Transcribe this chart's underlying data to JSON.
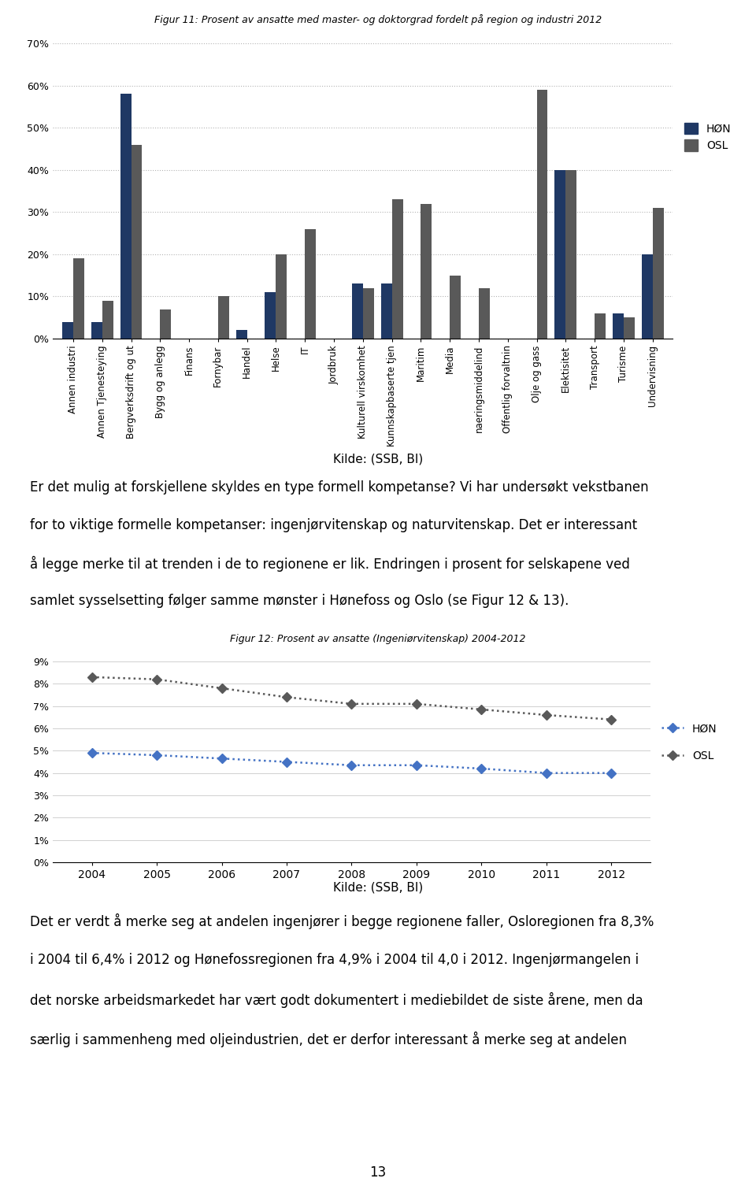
{
  "fig11_title": "Figur 11: Prosent av ansatte med master- og doktorgrad fordelt på region og industri 2012",
  "fig12_title": "Figur 12: Prosent av ansatte (Ingeniørvitenskap) 2004-2012",
  "kilde": "Kilde: (SSB, BI)",
  "categories": [
    "Annen industri",
    "Annen Tjenesteying",
    "Bergverksdrift og ut",
    "Bygg og anlegg",
    "Finans",
    "Fornybar",
    "Handel",
    "Helse",
    "IT",
    "Jordbruk",
    "Kulturell virskomhet",
    "Kunnskapbaserte tjen",
    "Maritim",
    "Media",
    "naeringsmiddelind",
    "Offentlig forvaltnin",
    "Olje og gass",
    "Elektisitet",
    "Transport",
    "Turisme",
    "Undervisning"
  ],
  "HON_values": [
    4,
    4,
    58,
    0,
    0,
    0,
    2,
    11,
    0,
    0,
    13,
    13,
    0,
    0,
    0,
    0,
    0,
    40,
    0,
    6,
    20
  ],
  "OSL_values": [
    19,
    9,
    46,
    7,
    0,
    10,
    0,
    20,
    26,
    0,
    12,
    33,
    32,
    15,
    12,
    0,
    59,
    40,
    6,
    5,
    31
  ],
  "bar_color_HON": "#1f3864",
  "bar_color_OSL": "#595959",
  "legend_HON": "HØN",
  "legend_OSL": "OSL",
  "fig11_ylim": [
    0,
    70
  ],
  "fig11_yticks": [
    0,
    10,
    20,
    30,
    40,
    50,
    60,
    70
  ],
  "fig11_ytick_labels": [
    "0%",
    "10%",
    "20%",
    "30%",
    "40%",
    "50%",
    "60%",
    "70%"
  ],
  "years": [
    2004,
    2005,
    2006,
    2007,
    2008,
    2009,
    2010,
    2011,
    2012
  ],
  "HON_line": [
    4.9,
    4.8,
    4.65,
    4.5,
    4.35,
    4.35,
    4.2,
    4.0,
    4.0
  ],
  "OSL_line": [
    8.3,
    8.2,
    7.8,
    7.4,
    7.1,
    7.1,
    6.85,
    6.6,
    6.4
  ],
  "fig12_ylim": [
    0,
    9
  ],
  "fig12_yticks": [
    0,
    1,
    2,
    3,
    4,
    5,
    6,
    7,
    8,
    9
  ],
  "fig12_ytick_labels": [
    "0%",
    "1%",
    "2%",
    "3%",
    "4%",
    "5%",
    "6%",
    "7%",
    "8%",
    "9%"
  ],
  "line_color_HON": "#4472c4",
  "line_color_OSL": "#595959",
  "text_block1_lines": [
    "Er det mulig at forskjellene skyldes en type formell kompetanse? Vi har undersøkt vekstbanen",
    "for to viktige formelle kompetanser: ingenjørvitenskap og naturvitenskap. Det er interessant",
    "å legge merke til at trenden i de to regionene er lik. Endringen i prosent for selskapene ved",
    "samlet sysselsetting følger samme mønster i Hønefoss og Oslo (se Figur 12 & 13)."
  ],
  "text_block2_lines": [
    "Det er verdt å merke seg at andelen ingenjører i begge regionene faller, Osloregionen fra 8,3%",
    "i 2004 til 6,4% i 2012 og Hønefossregionen fra 4,9% i 2004 til 4,0 i 2012. Ingenjørmangelen i",
    "det norske arbeidsmarkedet har vært godt dokumentert i mediebildet de siste årene, men da",
    "særlig i sammenheng med oljeindustrien, det er derfor interessant å merke seg at andelen"
  ],
  "page_number": "13",
  "background_color": "#ffffff"
}
